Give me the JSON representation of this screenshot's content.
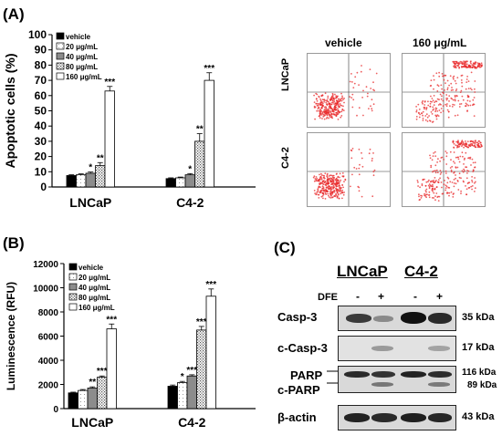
{
  "panels": {
    "a": "(A)",
    "b": "(B)",
    "c": "(C)"
  },
  "legend_labels": [
    "vehicle",
    "20 μg/mL",
    "40 μg/mL",
    "80 μg/mL",
    "160 μg/mL"
  ],
  "colors": {
    "vehicle": "#000000",
    "d20": "#ffffff",
    "d40": "#8c8c8c",
    "d80": "#cfcfcf",
    "d160": "#ffffff",
    "dots": "#e8282a"
  },
  "chart_data": [
    {
      "type": "bar",
      "ylabel": "Apoptotic cells (%)",
      "xlabel": "",
      "ylim": [
        0,
        100
      ],
      "yticks": [
        0,
        10,
        20,
        30,
        40,
        50,
        60,
        70,
        80,
        90,
        100
      ],
      "ytick_labels": [
        "0",
        "10",
        "20",
        "30",
        "40",
        "50",
        "60",
        "70",
        "80",
        "90",
        "100"
      ],
      "categories": [
        "LNCaP",
        "C4-2"
      ],
      "series": [
        {
          "name": "vehicle",
          "values": [
            7.5,
            5.5
          ],
          "errors": [
            0.5,
            0.5
          ],
          "sig": [
            "",
            ""
          ]
        },
        {
          "name": "20 μg/mL",
          "values": [
            8,
            6
          ],
          "errors": [
            0.6,
            0.5
          ],
          "sig": [
            "",
            ""
          ]
        },
        {
          "name": "40 μg/mL",
          "values": [
            9,
            8
          ],
          "errors": [
            0.8,
            0.8
          ],
          "sig": [
            "*",
            "*"
          ]
        },
        {
          "name": "80 μg/mL",
          "values": [
            14,
            30
          ],
          "errors": [
            2,
            5
          ],
          "sig": [
            "**",
            "**"
          ]
        },
        {
          "name": "160 μg/mL",
          "values": [
            63,
            70
          ],
          "errors": [
            3,
            5
          ],
          "sig": [
            "***",
            "***"
          ]
        }
      ],
      "legend_position": "top-left"
    },
    {
      "type": "bar",
      "ylabel": "Luminescence (RFU)",
      "xlabel": "",
      "ylim": [
        0,
        12000
      ],
      "yticks": [
        0,
        2000,
        4000,
        6000,
        8000,
        10000,
        12000
      ],
      "ytick_labels": [
        "0",
        "2000",
        "4000",
        "6000",
        "8000",
        "10000",
        "12000"
      ],
      "categories": [
        "LNCaP",
        "C4-2"
      ],
      "series": [
        {
          "name": "vehicle",
          "values": [
            1300,
            1850
          ],
          "errors": [
            60,
            100
          ],
          "sig": [
            "",
            ""
          ]
        },
        {
          "name": "20 μg/mL",
          "values": [
            1500,
            2150
          ],
          "errors": [
            80,
            100
          ],
          "sig": [
            "",
            "*"
          ]
        },
        {
          "name": "40 μg/mL",
          "values": [
            1700,
            2700
          ],
          "errors": [
            100,
            100
          ],
          "sig": [
            "**",
            "***"
          ]
        },
        {
          "name": "80 μg/mL",
          "values": [
            2600,
            6500
          ],
          "errors": [
            100,
            300
          ],
          "sig": [
            "***",
            "***"
          ]
        },
        {
          "name": "160 μg/mL",
          "values": [
            6600,
            9300
          ],
          "errors": [
            400,
            600
          ],
          "sig": [
            "***",
            "***"
          ]
        }
      ],
      "legend_position": "top-left"
    }
  ],
  "flow": {
    "col_headers": [
      "vehicle",
      "160 μg/mL"
    ],
    "row_labels": [
      "LNCaP",
      "C4-2"
    ]
  },
  "blot": {
    "cell_lines": [
      "LNCaP",
      "C4-2"
    ],
    "treatment_label": "DFE",
    "lane_marks": [
      "-",
      "+",
      "-",
      "+"
    ],
    "rows": [
      {
        "label": "Casp-3",
        "kda": "35 kDa"
      },
      {
        "label": "c-Casp-3",
        "kda": "17 kDa"
      },
      {
        "label": "PARP",
        "kda": "116 kDa"
      },
      {
        "label": "c-PARP",
        "kda": "89 kDa"
      },
      {
        "label": "β-actin",
        "kda": "43 kDa"
      }
    ]
  }
}
